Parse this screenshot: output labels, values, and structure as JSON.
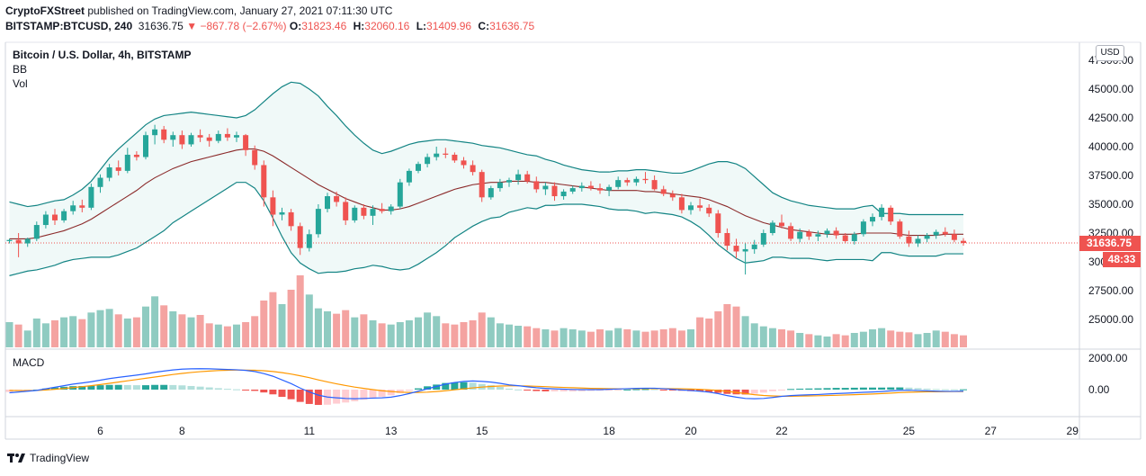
{
  "header": {
    "publisher": "CryptoFXStreet",
    "published_text": "published on TradingView.com, January 27, 2021 07:11:30 UTC",
    "symbol": "BITSTAMP:BTCUSD, 240",
    "last": "31636.75",
    "change": "−867.78 (−2.67%)",
    "ohlc": [
      {
        "k": "O:",
        "v": "31823.46"
      },
      {
        "k": "H:",
        "v": "32060.16"
      },
      {
        "k": "L:",
        "v": "31409.96"
      },
      {
        "k": "C:",
        "v": "31636.75"
      }
    ]
  },
  "legend": {
    "title": "Bitcoin / U.S. Dollar, 4h, BITSTAMP",
    "indicator1": "BB",
    "indicator2": "Vol"
  },
  "macd_label": "MACD",
  "currency_badge": "USD",
  "price_tag": "31636.75",
  "timer_tag": "48:33",
  "footer": {
    "brand": "TradingView"
  },
  "colors": {
    "up": "#26a69a",
    "down": "#ef5350",
    "vol_up": "#8fcbc1",
    "vol_down": "#f4a3a1",
    "bb_band": "#138484",
    "bb_basis": "#8b2a2a",
    "macd": "#2962ff",
    "signal": "#ff9800"
  },
  "chart_data": {
    "type": "candlestick",
    "x_tick_labels": [
      "6",
      "8",
      "11",
      "13",
      "15",
      "18",
      "20",
      "22",
      "25",
      "27",
      "29"
    ],
    "price_axis": {
      "ticks": [
        "47500.00",
        "45000.00",
        "42500.00",
        "40000.00",
        "37500.00",
        "35000.00",
        "32500.00",
        "30000.00",
        "27500.00",
        "25000.00"
      ],
      "values": [
        47500,
        45000,
        42500,
        40000,
        37500,
        35000,
        32500,
        30000,
        27500,
        25000
      ]
    },
    "macd_axis": {
      "ticks": [
        "2000.00",
        "0.00"
      ],
      "values": [
        2000,
        0
      ]
    },
    "current_price": 31636.75,
    "candles": [
      [
        31800,
        32000,
        31600,
        31900
      ],
      [
        31900,
        32500,
        30400,
        31600
      ],
      [
        31600,
        32100,
        31300,
        32000
      ],
      [
        32000,
        33500,
        31800,
        33200
      ],
      [
        33200,
        34400,
        32900,
        34100
      ],
      [
        34100,
        34600,
        33200,
        33600
      ],
      [
        33600,
        34600,
        33400,
        34400
      ],
      [
        34400,
        35300,
        34100,
        34900
      ],
      [
        34900,
        35400,
        34300,
        34700
      ],
      [
        34700,
        36800,
        34500,
        36500
      ],
      [
        36500,
        37600,
        36000,
        37300
      ],
      [
        37300,
        38500,
        37000,
        38200
      ],
      [
        38200,
        38800,
        37500,
        37900
      ],
      [
        37900,
        39900,
        37700,
        39300
      ],
      [
        39300,
        39600,
        38800,
        39100
      ],
      [
        39100,
        41300,
        38900,
        41000
      ],
      [
        41000,
        41900,
        40200,
        41500
      ],
      [
        41500,
        41800,
        40300,
        40600
      ],
      [
        40600,
        41300,
        40000,
        41000
      ],
      [
        41000,
        41400,
        39800,
        40200
      ],
      [
        40200,
        41200,
        40000,
        41000
      ],
      [
        41000,
        41500,
        40400,
        40800
      ],
      [
        40800,
        41100,
        40000,
        40500
      ],
      [
        40500,
        41400,
        40300,
        41100
      ],
      [
        41100,
        41600,
        40500,
        40800
      ],
      [
        40800,
        41300,
        40400,
        41000
      ],
      [
        41000,
        41100,
        39200,
        39700
      ],
      [
        39700,
        40100,
        38000,
        38400
      ],
      [
        38400,
        38800,
        34800,
        35600
      ],
      [
        35600,
        36200,
        33100,
        34100
      ],
      [
        34100,
        34700,
        33600,
        34300
      ],
      [
        34300,
        34600,
        32700,
        33100
      ],
      [
        33100,
        33400,
        30600,
        31200
      ],
      [
        31200,
        32800,
        30900,
        32400
      ],
      [
        32400,
        35000,
        32100,
        34600
      ],
      [
        34600,
        36000,
        34300,
        35700
      ],
      [
        35700,
        36100,
        34800,
        35200
      ],
      [
        35200,
        35600,
        33200,
        33600
      ],
      [
        33600,
        34900,
        33400,
        34700
      ],
      [
        34700,
        35000,
        33700,
        34000
      ],
      [
        34000,
        34900,
        33200,
        34600
      ],
      [
        34600,
        35100,
        34200,
        34400
      ],
      [
        34400,
        35000,
        34100,
        34800
      ],
      [
        34800,
        37200,
        34600,
        36900
      ],
      [
        36900,
        38100,
        36600,
        37900
      ],
      [
        37900,
        38700,
        37700,
        38500
      ],
      [
        38500,
        39400,
        38200,
        39100
      ],
      [
        39100,
        40000,
        38800,
        39400
      ],
      [
        39400,
        39900,
        39000,
        39300
      ],
      [
        39300,
        39500,
        38600,
        38800
      ],
      [
        38800,
        39100,
        38100,
        38400
      ],
      [
        38400,
        38800,
        37500,
        37800
      ],
      [
        37800,
        38000,
        35200,
        35600
      ],
      [
        35600,
        36600,
        35400,
        36400
      ],
      [
        36400,
        37200,
        36100,
        36900
      ],
      [
        36900,
        37300,
        36500,
        37100
      ],
      [
        37100,
        38000,
        36700,
        37600
      ],
      [
        37600,
        37900,
        36800,
        37000
      ],
      [
        37000,
        37400,
        36000,
        36300
      ],
      [
        36300,
        36900,
        35800,
        36600
      ],
      [
        36600,
        36900,
        35300,
        35700
      ],
      [
        35700,
        36300,
        35400,
        36100
      ],
      [
        36100,
        36600,
        35900,
        36400
      ],
      [
        36400,
        36900,
        36100,
        36600
      ],
      [
        36600,
        37000,
        36200,
        36400
      ],
      [
        36400,
        36800,
        35900,
        36200
      ],
      [
        36200,
        36700,
        35700,
        36500
      ],
      [
        36500,
        37400,
        36300,
        37100
      ],
      [
        37100,
        37300,
        36600,
        36900
      ],
      [
        36900,
        37400,
        36600,
        37200
      ],
      [
        37200,
        37800,
        36800,
        37100
      ],
      [
        37100,
        37500,
        36200,
        36300
      ],
      [
        36300,
        36600,
        35700,
        35900
      ],
      [
        35900,
        36200,
        35300,
        35600
      ],
      [
        35600,
        35900,
        34200,
        34500
      ],
      [
        34500,
        35200,
        34100,
        34900
      ],
      [
        34900,
        35500,
        34400,
        34700
      ],
      [
        34700,
        35000,
        33900,
        34200
      ],
      [
        34200,
        34500,
        32100,
        32500
      ],
      [
        32500,
        32900,
        31000,
        31400
      ],
      [
        31400,
        32000,
        30300,
        30900
      ],
      [
        30900,
        31600,
        28900,
        31100
      ],
      [
        31100,
        31900,
        30700,
        31500
      ],
      [
        31500,
        32800,
        31300,
        32500
      ],
      [
        32500,
        33600,
        32300,
        33400
      ],
      [
        33400,
        34100,
        32900,
        33100
      ],
      [
        33100,
        33400,
        31800,
        32000
      ],
      [
        32000,
        32900,
        31700,
        32600
      ],
      [
        32600,
        32800,
        31900,
        32200
      ],
      [
        32200,
        32700,
        31800,
        32400
      ],
      [
        32400,
        32900,
        32100,
        32700
      ],
      [
        32700,
        33000,
        32000,
        32300
      ],
      [
        32300,
        32500,
        31600,
        31800
      ],
      [
        31800,
        32600,
        31500,
        32400
      ],
      [
        32400,
        33700,
        32200,
        33500
      ],
      [
        33500,
        34200,
        33100,
        33900
      ],
      [
        33900,
        35000,
        33600,
        34700
      ],
      [
        34700,
        34900,
        33200,
        33500
      ],
      [
        33500,
        33700,
        32000,
        32200
      ],
      [
        32200,
        32700,
        31300,
        31600
      ],
      [
        31600,
        32300,
        31300,
        32000
      ],
      [
        32000,
        32500,
        31700,
        32300
      ],
      [
        32300,
        32800,
        32000,
        32600
      ],
      [
        32600,
        33000,
        32200,
        32400
      ],
      [
        32400,
        32800,
        31700,
        31900
      ],
      [
        31823,
        32060,
        31410,
        31637
      ]
    ],
    "volume": [
      42,
      38,
      28,
      48,
      40,
      45,
      50,
      52,
      47,
      58,
      62,
      64,
      55,
      48,
      50,
      68,
      85,
      70,
      60,
      55,
      50,
      54,
      40,
      38,
      35,
      38,
      42,
      52,
      78,
      92,
      72,
      96,
      120,
      88,
      65,
      60,
      56,
      62,
      50,
      55,
      45,
      40,
      38,
      42,
      45,
      50,
      58,
      52,
      40,
      38,
      42,
      45,
      58,
      50,
      40,
      38,
      36,
      35,
      32,
      30,
      28,
      32,
      30,
      28,
      26,
      30,
      28,
      32,
      30,
      28,
      26,
      28,
      30,
      32,
      28,
      30,
      50,
      48,
      60,
      72,
      68,
      52,
      40,
      35,
      32,
      30,
      28,
      24,
      22,
      20,
      18,
      22,
      20,
      24,
      26,
      30,
      32,
      28,
      26,
      25,
      22,
      24,
      28,
      26,
      22,
      20
    ],
    "bollinger": {
      "upper": [
        35200,
        35000,
        34800,
        34900,
        35100,
        35300,
        35400,
        35800,
        36300,
        37000,
        38000,
        39000,
        39800,
        40500,
        41200,
        41900,
        42400,
        42700,
        42800,
        42900,
        43000,
        42900,
        42800,
        42700,
        42600,
        42500,
        42700,
        43200,
        43900,
        44600,
        45200,
        45600,
        45500,
        45000,
        44400,
        43500,
        42700,
        41800,
        41000,
        40300,
        39700,
        39400,
        39600,
        39900,
        40200,
        40400,
        40500,
        40600,
        40600,
        40500,
        40400,
        40300,
        40100,
        40000,
        39900,
        39700,
        39500,
        39300,
        39200,
        38900,
        38700,
        38400,
        38200,
        38000,
        37900,
        37800,
        37800,
        37900,
        37900,
        38000,
        38000,
        37900,
        37800,
        37700,
        37700,
        37900,
        38200,
        38500,
        38700,
        38700,
        38500,
        38100,
        37400,
        36700,
        36000,
        35600,
        35300,
        35100,
        34900,
        34800,
        34700,
        34600,
        34600,
        34600,
        34800,
        34900,
        34200,
        34200,
        34200,
        34100,
        34100,
        34100,
        34100,
        34100,
        34100,
        34100
      ],
      "basis": [
        32000,
        32000,
        32000,
        32100,
        32300,
        32500,
        32700,
        33000,
        33300,
        33700,
        34200,
        34700,
        35200,
        35700,
        36200,
        36800,
        37300,
        37700,
        38100,
        38400,
        38700,
        38900,
        39100,
        39300,
        39500,
        39700,
        39800,
        39800,
        39600,
        39200,
        38700,
        38200,
        37700,
        37200,
        36700,
        36300,
        35900,
        35500,
        35200,
        34900,
        34700,
        34500,
        34500,
        34600,
        34800,
        35100,
        35400,
        35700,
        36000,
        36300,
        36500,
        36700,
        36800,
        36900,
        36900,
        37000,
        37000,
        37000,
        36900,
        36900,
        36800,
        36700,
        36600,
        36500,
        36400,
        36300,
        36200,
        36200,
        36200,
        36200,
        36100,
        36100,
        36000,
        35900,
        35800,
        35700,
        35600,
        35400,
        35100,
        34800,
        34400,
        34000,
        33700,
        33400,
        33200,
        33000,
        32800,
        32700,
        32600,
        32500,
        32400,
        32400,
        32400,
        32400,
        32500,
        32500,
        32500,
        32500,
        32400,
        32300,
        32300,
        32300,
        32300,
        32400,
        32400,
        32400
      ],
      "lower": [
        28800,
        29000,
        29200,
        29300,
        29500,
        29700,
        30000,
        30200,
        30300,
        30400,
        30400,
        30400,
        30600,
        30900,
        31200,
        31700,
        32200,
        32700,
        33400,
        33900,
        34400,
        34900,
        35400,
        35900,
        36400,
        36900,
        36900,
        36400,
        35300,
        33800,
        32200,
        30800,
        29900,
        29400,
        29000,
        29100,
        29100,
        29200,
        29400,
        29500,
        29700,
        29600,
        29400,
        29300,
        29400,
        29800,
        30300,
        30800,
        31400,
        32100,
        32600,
        33100,
        33500,
        33800,
        33900,
        34300,
        34500,
        34700,
        34600,
        34900,
        34900,
        35000,
        35000,
        35000,
        34900,
        34800,
        34600,
        34500,
        34500,
        34400,
        34200,
        34300,
        34200,
        34100,
        33900,
        33500,
        33000,
        32300,
        31500,
        30900,
        30300,
        29900,
        30000,
        30100,
        30400,
        30400,
        30300,
        30300,
        30300,
        30200,
        30100,
        30200,
        30200,
        30200,
        30200,
        30100,
        30800,
        30800,
        30600,
        30500,
        30500,
        30500,
        30500,
        30700,
        30700,
        30700
      ]
    },
    "macd": {
      "macd": [
        -200,
        -150,
        -100,
        -50,
        50,
        150,
        250,
        350,
        420,
        500,
        600,
        700,
        780,
        850,
        920,
        1000,
        1100,
        1180,
        1250,
        1300,
        1320,
        1330,
        1320,
        1300,
        1280,
        1260,
        1220,
        1150,
        1020,
        850,
        620,
        380,
        100,
        -150,
        -350,
        -470,
        -520,
        -560,
        -580,
        -560,
        -540,
        -520,
        -480,
        -380,
        -250,
        -100,
        50,
        200,
        350,
        450,
        520,
        550,
        520,
        480,
        400,
        300,
        250,
        180,
        120,
        80,
        50,
        30,
        10,
        0,
        0,
        0,
        20,
        40,
        60,
        80,
        90,
        90,
        60,
        20,
        -20,
        -60,
        -100,
        -160,
        -250,
        -380,
        -480,
        -560,
        -580,
        -560,
        -500,
        -430,
        -380,
        -350,
        -330,
        -310,
        -280,
        -250,
        -230,
        -200,
        -170,
        -150,
        -120,
        -80,
        -50,
        -40,
        -60,
        -80,
        -100,
        -110,
        -110,
        -100
      ],
      "signal": [
        -50,
        -60,
        -60,
        -50,
        -20,
        20,
        70,
        130,
        190,
        250,
        320,
        400,
        480,
        560,
        640,
        720,
        800,
        880,
        960,
        1030,
        1090,
        1140,
        1180,
        1210,
        1230,
        1240,
        1240,
        1230,
        1200,
        1150,
        1080,
        990,
        880,
        760,
        620,
        490,
        370,
        260,
        160,
        80,
        0,
        -70,
        -120,
        -160,
        -180,
        -180,
        -160,
        -120,
        -70,
        -10,
        50,
        110,
        160,
        200,
        230,
        240,
        240,
        230,
        210,
        190,
        160,
        140,
        120,
        100,
        80,
        70,
        60,
        55,
        55,
        57,
        60,
        63,
        63,
        60,
        50,
        35,
        15,
        -10,
        -50,
        -110,
        -180,
        -250,
        -320,
        -370,
        -400,
        -420,
        -420,
        -410,
        -400,
        -390,
        -375,
        -360,
        -340,
        -320,
        -300,
        -280,
        -250,
        -220,
        -190,
        -165,
        -150,
        -140,
        -135,
        -130,
        -125,
        -120
      ]
    }
  }
}
